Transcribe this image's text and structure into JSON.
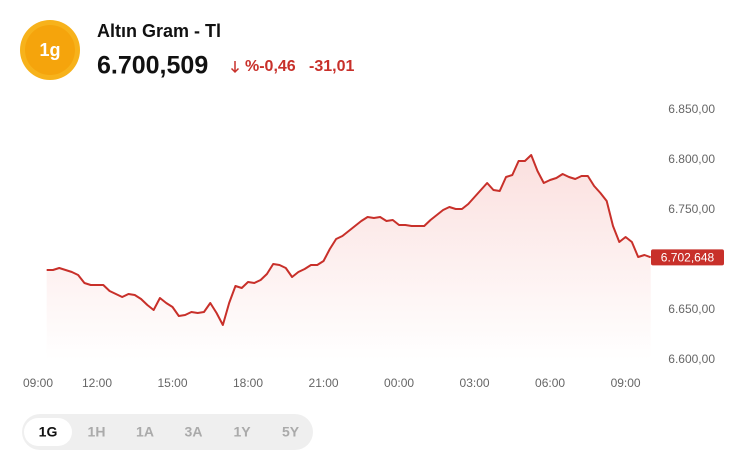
{
  "header": {
    "icon": "1g",
    "title": "Altın Gram - Tl",
    "price": "6.700,509",
    "change_pct": "%-0,46",
    "change": "-31,01"
  },
  "tabs": {
    "items": [
      "1G",
      "1H",
      "1A",
      "3A",
      "1Y",
      "5Y"
    ],
    "active": 0
  },
  "chart_data": {
    "type": "line",
    "x": [
      1,
      1.25,
      1.5,
      1.75,
      2,
      2.25,
      2.5,
      2.75,
      3,
      3.25,
      3.5,
      3.75,
      4,
      4.25,
      4.5,
      4.75,
      5,
      5.25,
      5.5,
      5.75,
      6,
      6.25,
      6.5,
      6.75,
      7,
      7.25,
      7.5,
      7.75,
      8,
      8.25,
      8.5,
      8.75,
      9,
      9.25,
      9.5,
      9.75,
      10,
      10.25,
      10.5,
      10.75,
      11,
      11.25,
      11.5,
      11.75,
      12,
      12.25,
      12.5,
      12.75,
      13,
      13.25,
      13.5,
      13.75,
      14,
      14.25,
      14.5,
      14.75,
      15,
      15.25,
      15.5,
      15.75,
      16,
      16.25,
      16.5,
      16.75,
      17,
      17.25,
      17.5,
      17.75,
      18,
      18.25,
      18.5,
      18.75,
      19,
      19.25,
      19.5,
      19.75,
      20,
      20.25,
      20.5,
      20.75,
      21,
      21.25,
      21.5,
      21.75,
      22,
      22.25,
      22.5,
      22.75,
      23,
      23.25,
      23.5,
      23.75,
      24,
      24.25,
      24.5,
      24.75,
      25
    ],
    "series": [
      {
        "color": "#c8302a",
        "values": [
          6690,
          6690,
          6692,
          6690,
          6688,
          6685,
          6677,
          6675,
          6675,
          6675,
          6669,
          6666,
          6663,
          6666,
          6665,
          6661,
          6655,
          6650,
          6662,
          6657,
          6653,
          6644,
          6645,
          6648,
          6647,
          6648,
          6657,
          6647,
          6635,
          6657,
          6674,
          6672,
          6678,
          6677,
          6680,
          6686,
          6696,
          6695,
          6692,
          6683,
          6688,
          6691,
          6695,
          6695,
          6699,
          6711,
          6721,
          6724,
          6729,
          6734,
          6739,
          6743,
          6742,
          6743,
          6739,
          6740,
          6735,
          6735,
          6734,
          6734,
          6734,
          6740,
          6745,
          6750,
          6753,
          6751,
          6751,
          6756,
          6763,
          6770,
          6777,
          6770,
          6769,
          6783,
          6785,
          6799,
          6799,
          6805,
          6789,
          6777,
          6780,
          6782,
          6786,
          6783,
          6781,
          6784,
          6784,
          6774,
          6767,
          6759,
          6734,
          6718,
          6723,
          6718,
          6703,
          6705,
          6702.648
        ]
      }
    ],
    "last_label": {
      "value": 6702.648,
      "label": "6.702,648"
    },
    "xlim": [
      0,
      25
    ],
    "xticks": [
      {
        "value": 0,
        "label": "09:00"
      },
      {
        "value": 3,
        "label": "12:00"
      },
      {
        "value": 6,
        "label": "15:00"
      },
      {
        "value": 9,
        "label": "18:00"
      },
      {
        "value": 12,
        "label": "21:00"
      },
      {
        "value": 15,
        "label": "00:00"
      },
      {
        "value": 18,
        "label": "03:00"
      },
      {
        "value": 21,
        "label": "06:00"
      },
      {
        "value": 24,
        "label": "09:00"
      }
    ],
    "ylim": [
      6600,
      6850
    ],
    "yticks": [
      {
        "value": 6600,
        "label": "6.600,00"
      },
      {
        "value": 6650,
        "label": "6.650,00"
      },
      {
        "value": 6700,
        "label": "6.700,00"
      },
      {
        "value": 6750,
        "label": "6.750,00"
      },
      {
        "value": 6800,
        "label": "6.800,00"
      },
      {
        "value": 6850,
        "label": "6.850,00"
      }
    ]
  }
}
